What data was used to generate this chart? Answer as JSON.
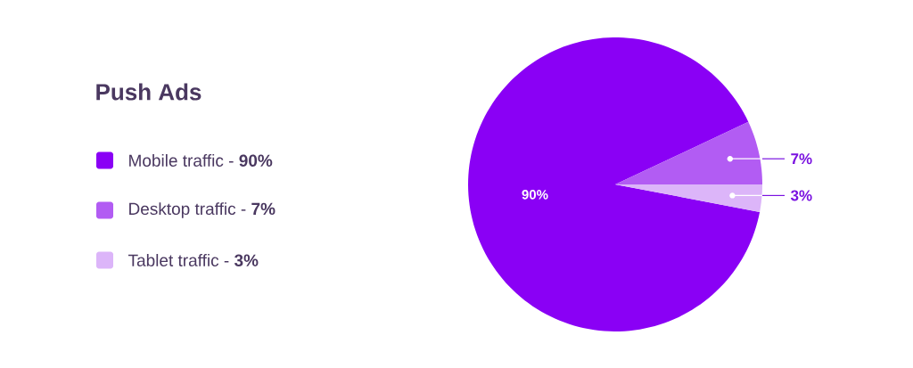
{
  "chart_data": {
    "type": "pie",
    "title": "Push Ads",
    "categories": [
      "Mobile traffic - **90%**",
      "Desktop traffic - **7%**",
      "Tablet traffic - **3%**"
    ],
    "values": [
      90,
      7,
      3
    ],
    "colors": [
      "#8a00f5",
      "#b25cf3",
      "#dcb5f9"
    ],
    "value_labels": [
      "90%",
      "7%",
      "3%"
    ],
    "legend": "left"
  }
}
